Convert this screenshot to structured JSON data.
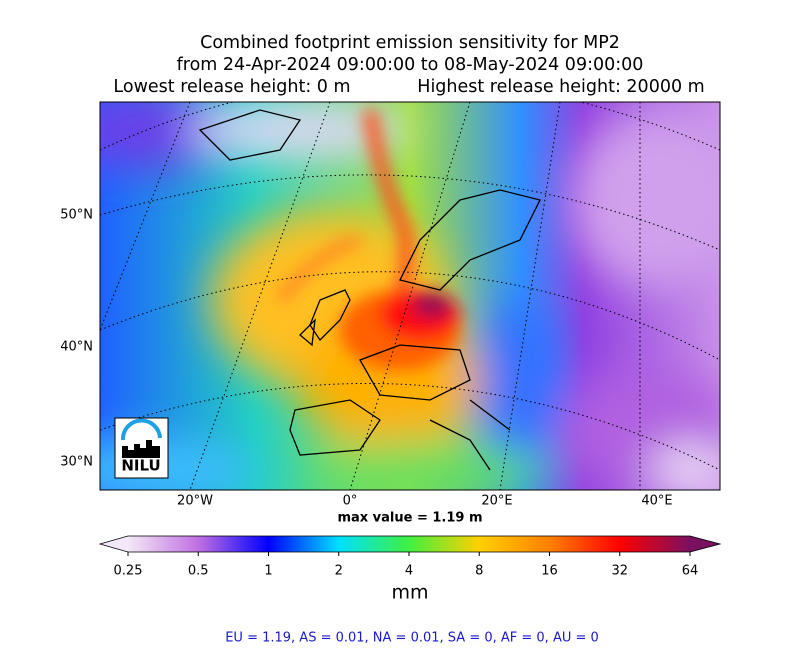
{
  "header": {
    "title": "Combined footprint emission sensitivity for MP2",
    "period": "from 24-Apr-2024 09:00:00 to 08-May-2024 09:00:00",
    "lowest_release": "Lowest release height: 0 m",
    "highest_release": "Highest release height: 20000 m"
  },
  "map": {
    "lat_labels": [
      "50°N",
      "40°N",
      "30°N"
    ],
    "lon_labels": [
      "20°W",
      "0°",
      "20°E",
      "40°E"
    ],
    "logo": "NILU",
    "max_value": "max value = 1.19 m"
  },
  "colorbar": {
    "ticks": [
      0.25,
      0.5,
      1,
      2,
      4,
      8,
      16,
      32,
      64
    ],
    "colors": [
      "#f4e8f8",
      "#c070e0",
      "#0000ff",
      "#00e0ff",
      "#40f040",
      "#ffd000",
      "#ff8000",
      "#ff0000",
      "#7a1060"
    ],
    "unit": "mm"
  },
  "footer": "EU = 1.19,  AS = 0.01,  NA = 0.01,  SA = 0,  AF = 0,  AU = 0"
}
